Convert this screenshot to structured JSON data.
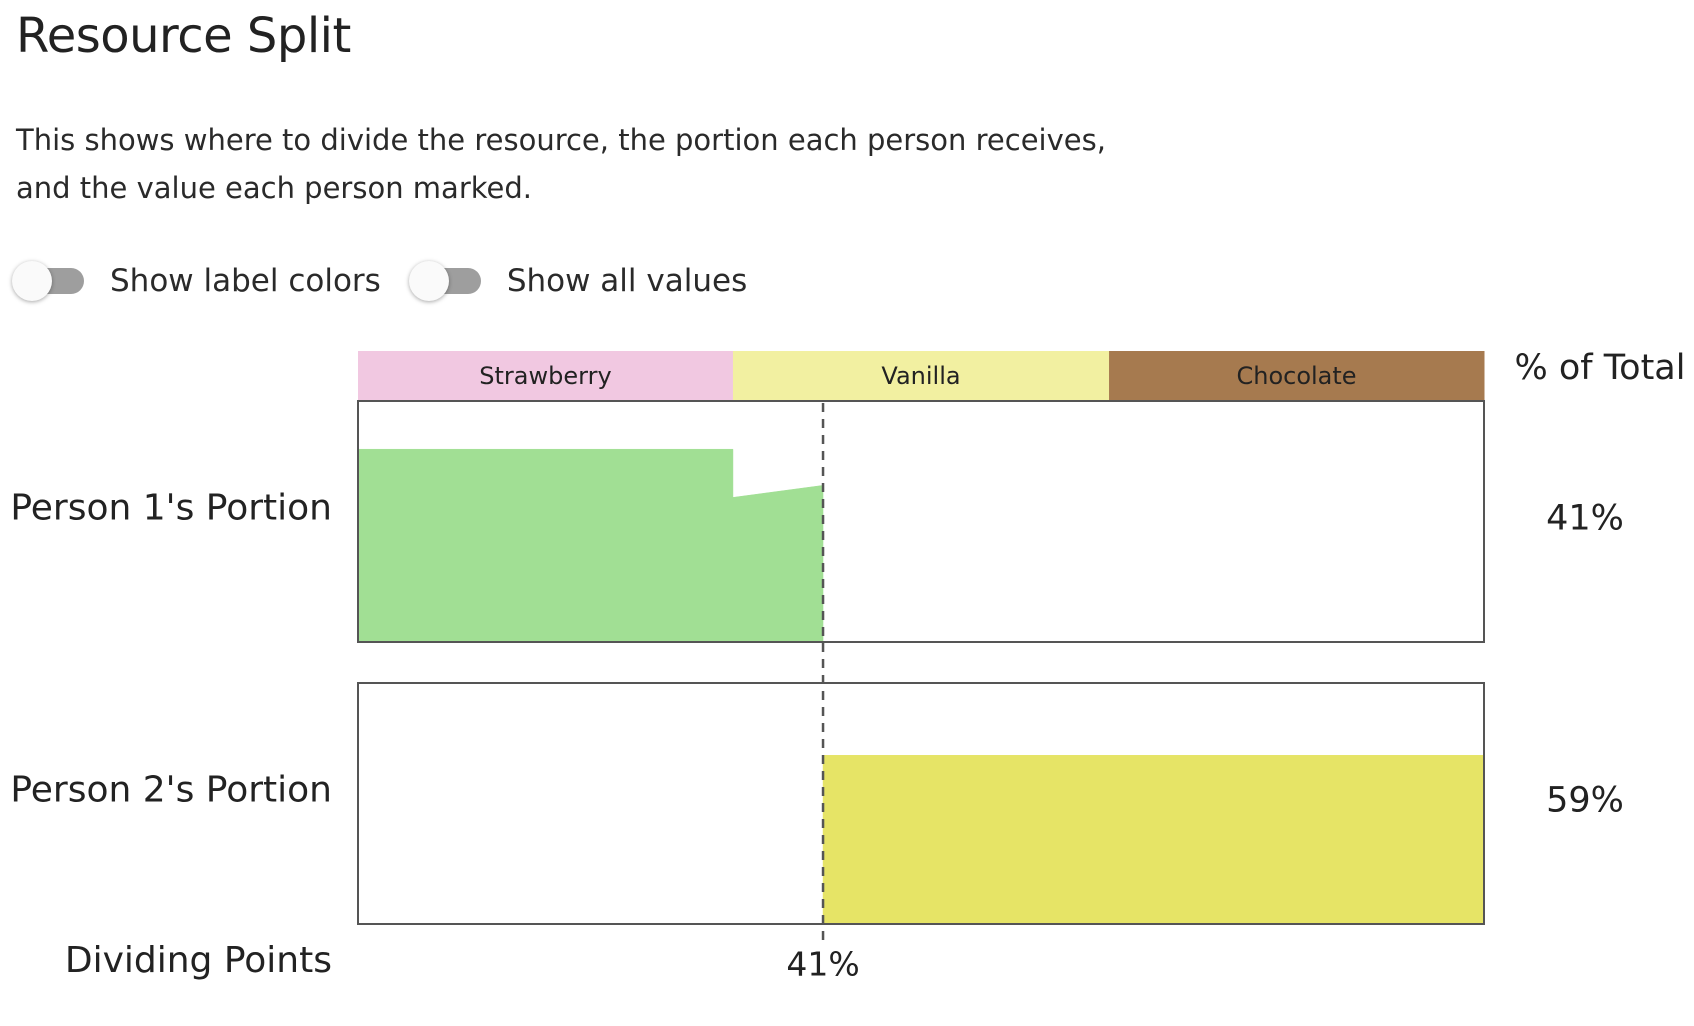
{
  "header": {
    "title": "Resource Split",
    "description_line1": "This shows where to divide the resource, the portion each person receives,",
    "description_line2": "and the value each person marked."
  },
  "toggles": [
    {
      "label": "Show label colors",
      "state": "off"
    },
    {
      "label": "Show all values",
      "state": "off"
    }
  ],
  "chart_data": {
    "type": "area",
    "x_range": [
      0,
      1
    ],
    "flavors": [
      {
        "name": "Strawberry",
        "start": 0.0,
        "end": 0.333,
        "color": "#f1c8e1"
      },
      {
        "name": "Vanilla",
        "start": 0.333,
        "end": 0.667,
        "color": "#f2f0a1"
      },
      {
        "name": "Chocolate",
        "start": 0.667,
        "end": 1.0,
        "color": "#a67a4f"
      }
    ],
    "column_header": "% of Total",
    "rows": [
      {
        "label": "Person 1's Portion",
        "total": "41%",
        "color": "#a1df94",
        "segments": [
          {
            "x0": 0.0,
            "x1": 0.333,
            "v0": 0.8,
            "v1": 0.8
          },
          {
            "x0": 0.333,
            "x1": 0.413,
            "v0": 0.6,
            "v1": 0.65
          }
        ]
      },
      {
        "label": "Person 2's Portion",
        "total": "59%",
        "color": "#e6e466",
        "segments": [
          {
            "x0": 0.413,
            "x1": 1.0,
            "v0": 0.7,
            "v1": 0.7
          }
        ]
      }
    ],
    "dividing_points": {
      "label": "Dividing Points",
      "points": [
        {
          "x": 0.413,
          "label": "41%"
        }
      ]
    }
  }
}
